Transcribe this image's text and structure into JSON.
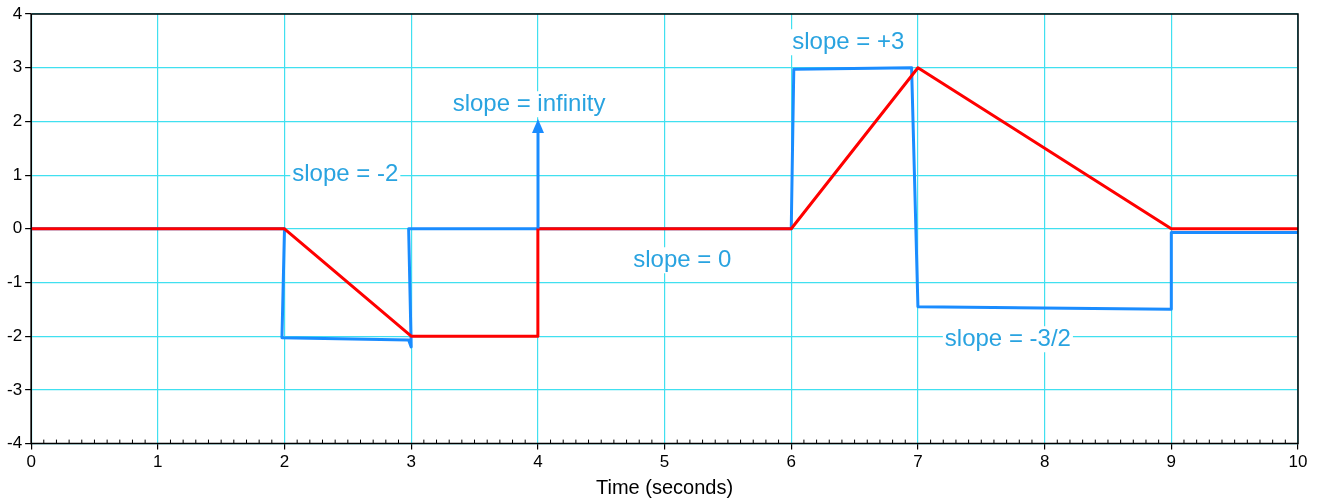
{
  "chart_data": {
    "type": "line",
    "xlabel": "Time (seconds)",
    "xlim": [
      0,
      10
    ],
    "ylim": [
      -4,
      4
    ],
    "xticks": [
      0,
      1,
      2,
      3,
      4,
      5,
      6,
      7,
      8,
      9,
      10
    ],
    "yticks": [
      -4,
      -3,
      -2,
      -1,
      0,
      1,
      2,
      3,
      4
    ],
    "grid": true,
    "legend": false,
    "marker": "none",
    "line_style": "solid",
    "series": [
      {
        "color": "#ff0000",
        "x": [
          0,
          2,
          3,
          4,
          4,
          6,
          7,
          9,
          10
        ],
        "values": [
          0,
          0,
          -2,
          -2,
          0,
          0,
          3,
          0,
          0
        ]
      },
      {
        "color": "#1a8cff",
        "x": [
          0,
          2,
          1.98,
          2.98,
          3,
          2.98,
          6,
          6.02,
          6.95,
          7,
          9,
          9,
          10
        ],
        "values": [
          0,
          0,
          -2.03,
          -2.07,
          -2.2,
          0,
          0,
          2.97,
          3,
          -1.45,
          -1.5,
          -0.07,
          -0.07
        ]
      }
    ],
    "annotations": [
      "slope = -2",
      {
        "text": "slope = infinity",
        "x": 4,
        "y": 0
      },
      "slope = 0",
      "slope = +3",
      "slope = -3/2"
    ]
  }
}
